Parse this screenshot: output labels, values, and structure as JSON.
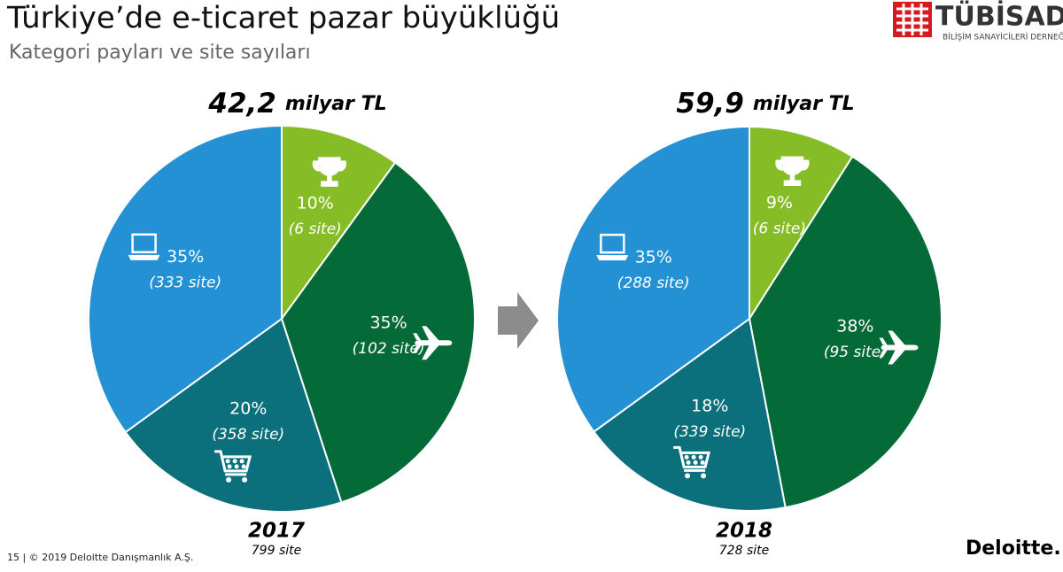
{
  "header": {
    "title": "Türkiye’de e-ticaret pazar büyüklüğü",
    "subtitle": "Kategori payları ve site sayıları"
  },
  "logo": {
    "name": "TÜBİSAD",
    "subtitle": "BİLİŞİM SANAYİCİLERİ DERNEĞİ"
  },
  "chart_data": [
    {
      "type": "pie",
      "title_value": "42,2",
      "title_unit": "milyar TL",
      "year": "2017",
      "total": "799 site",
      "values": [
        10,
        35,
        20,
        35
      ],
      "value_labels": [
        "10%",
        "35%",
        "20%",
        "35%"
      ],
      "site_labels": [
        "(6 site)",
        "(102 site)",
        "(358 site)",
        "(333 site)"
      ],
      "colors": [
        "#86bc25",
        "#046a38",
        "#0b6f7c",
        "#2391d4"
      ]
    },
    {
      "type": "pie",
      "title_value": "59,9",
      "title_unit": "milyar TL",
      "year": "2018",
      "total": "728 site",
      "values": [
        9,
        38,
        18,
        35
      ],
      "value_labels": [
        "9%",
        "38%",
        "18%",
        "35%"
      ],
      "site_labels": [
        "(6 site)",
        "(95 site)",
        "(339 site)",
        "(288 site)"
      ],
      "colors": [
        "#86bc25",
        "#046a38",
        "#0b6f7c",
        "#2391d4"
      ]
    }
  ],
  "footer": {
    "page": "15  |  © 2019 Deloitte Danışmanlık A.Ş.",
    "brand": "Deloitte."
  }
}
